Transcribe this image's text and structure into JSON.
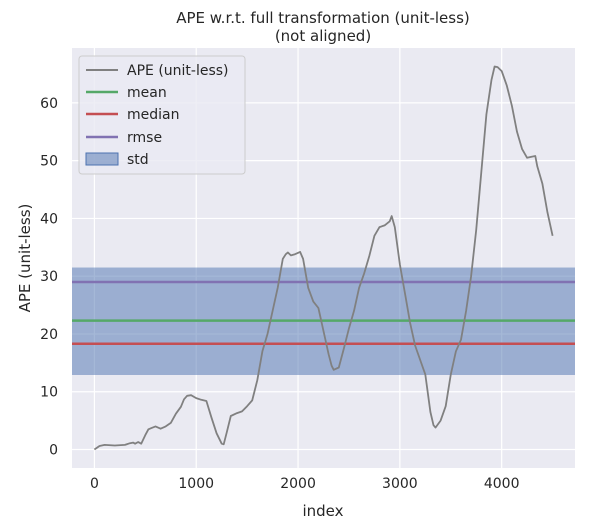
{
  "chart_data": {
    "type": "line",
    "title": [
      "APE w.r.t. full transformation (unit-less)",
      "(not aligned)"
    ],
    "xlabel": "index",
    "ylabel": "APE (unit-less)",
    "xlim": [
      -220,
      4720
    ],
    "ylim": [
      -3.2,
      69.5
    ],
    "xticks": [
      0,
      1000,
      2000,
      3000,
      4000
    ],
    "yticks": [
      0,
      10,
      20,
      30,
      40,
      50,
      60
    ],
    "grid": true,
    "legend_position": "upper-left",
    "series": [
      {
        "name": "APE (unit-less)",
        "color": "#808080",
        "points": [
          [
            0,
            0
          ],
          [
            50,
            0.6
          ],
          [
            100,
            0.8
          ],
          [
            200,
            0.7
          ],
          [
            300,
            0.8
          ],
          [
            350,
            1.1
          ],
          [
            380,
            1.2
          ],
          [
            400,
            1.0
          ],
          [
            430,
            1.3
          ],
          [
            460,
            1.0
          ],
          [
            500,
            2.5
          ],
          [
            530,
            3.5
          ],
          [
            560,
            3.7
          ],
          [
            600,
            4.0
          ],
          [
            650,
            3.6
          ],
          [
            700,
            4.0
          ],
          [
            750,
            4.6
          ],
          [
            800,
            6.2
          ],
          [
            850,
            7.4
          ],
          [
            880,
            8.7
          ],
          [
            910,
            9.3
          ],
          [
            950,
            9.4
          ],
          [
            1000,
            8.9
          ],
          [
            1050,
            8.6
          ],
          [
            1100,
            8.4
          ],
          [
            1150,
            5.5
          ],
          [
            1200,
            2.8
          ],
          [
            1250,
            1.0
          ],
          [
            1270,
            0.9
          ],
          [
            1300,
            3.0
          ],
          [
            1340,
            5.8
          ],
          [
            1400,
            6.3
          ],
          [
            1450,
            6.6
          ],
          [
            1500,
            7.5
          ],
          [
            1550,
            8.5
          ],
          [
            1600,
            12.0
          ],
          [
            1650,
            17.0
          ],
          [
            1700,
            20.0
          ],
          [
            1750,
            24.0
          ],
          [
            1800,
            28.0
          ],
          [
            1850,
            33.0
          ],
          [
            1880,
            33.8
          ],
          [
            1900,
            34.1
          ],
          [
            1930,
            33.6
          ],
          [
            1970,
            33.8
          ],
          [
            2020,
            34.2
          ],
          [
            2050,
            33.0
          ],
          [
            2100,
            28.0
          ],
          [
            2150,
            25.6
          ],
          [
            2200,
            24.5
          ],
          [
            2250,
            20.5
          ],
          [
            2300,
            16.5
          ],
          [
            2330,
            14.5
          ],
          [
            2350,
            13.8
          ],
          [
            2400,
            14.2
          ],
          [
            2450,
            17.5
          ],
          [
            2500,
            21.0
          ],
          [
            2550,
            24.0
          ],
          [
            2600,
            28.0
          ],
          [
            2650,
            30.5
          ],
          [
            2700,
            33.5
          ],
          [
            2750,
            37.0
          ],
          [
            2800,
            38.5
          ],
          [
            2850,
            38.8
          ],
          [
            2900,
            39.5
          ],
          [
            2920,
            40.4
          ],
          [
            2950,
            38.5
          ],
          [
            3000,
            32.0
          ],
          [
            3050,
            27.0
          ],
          [
            3100,
            22.0
          ],
          [
            3150,
            18.0
          ],
          [
            3200,
            15.5
          ],
          [
            3250,
            13.0
          ],
          [
            3300,
            6.5
          ],
          [
            3330,
            4.2
          ],
          [
            3350,
            3.8
          ],
          [
            3400,
            5.0
          ],
          [
            3450,
            7.5
          ],
          [
            3500,
            13.0
          ],
          [
            3550,
            17.0
          ],
          [
            3600,
            19.0
          ],
          [
            3650,
            24.0
          ],
          [
            3700,
            30.0
          ],
          [
            3750,
            38.0
          ],
          [
            3800,
            48.0
          ],
          [
            3850,
            58.0
          ],
          [
            3900,
            64.0
          ],
          [
            3930,
            66.3
          ],
          [
            3960,
            66.2
          ],
          [
            4000,
            65.5
          ],
          [
            4050,
            63.0
          ],
          [
            4100,
            59.5
          ],
          [
            4150,
            55.0
          ],
          [
            4200,
            52.0
          ],
          [
            4250,
            50.5
          ],
          [
            4300,
            50.7
          ],
          [
            4330,
            50.8
          ],
          [
            4350,
            49.0
          ],
          [
            4400,
            46.0
          ],
          [
            4450,
            41.0
          ],
          [
            4500,
            37.0
          ]
        ]
      }
    ],
    "stats": {
      "mean": {
        "name": "mean",
        "value": 22.3,
        "color": "#55a868"
      },
      "median": {
        "name": "median",
        "value": 18.3,
        "color": "#c44e52"
      },
      "rmse": {
        "name": "rmse",
        "value": 29.0,
        "color": "#8172b2"
      },
      "std": {
        "name": "std",
        "low": 12.9,
        "high": 31.5,
        "color": "#4c72b0"
      }
    }
  }
}
